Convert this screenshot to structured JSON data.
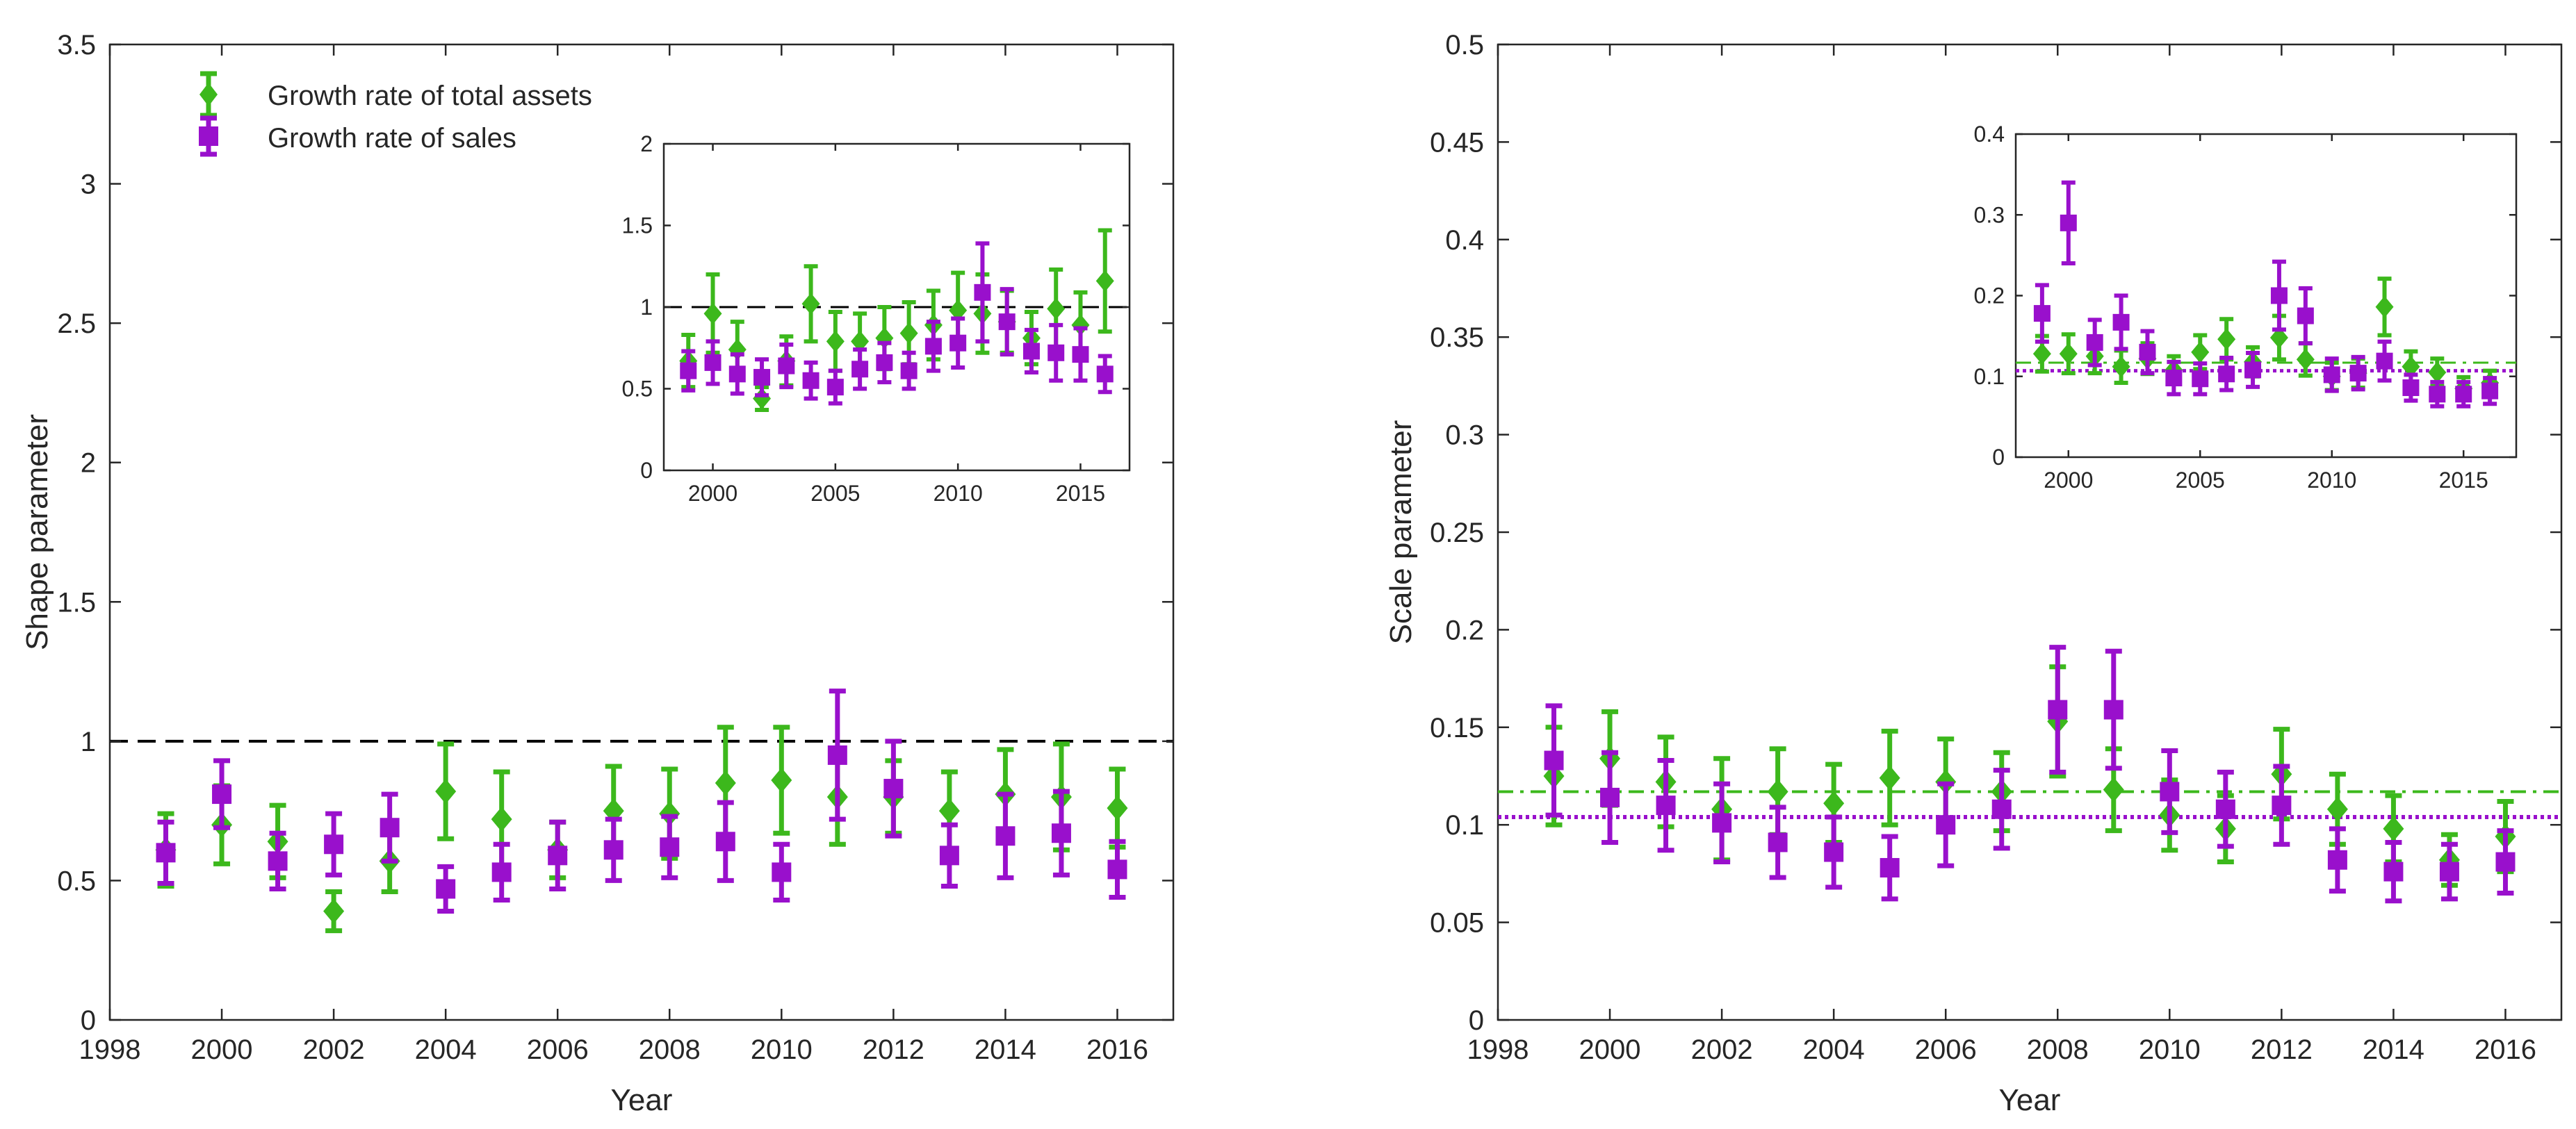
{
  "colors": {
    "assets": "#3cb81c",
    "sales": "#9910cc",
    "reference": "#000000",
    "axis": "#262626"
  },
  "legend": {
    "assets_label": "Growth rate of total assets",
    "sales_label": "Growth rate of sales"
  },
  "chart_data": [
    {
      "id": "shape-main",
      "type": "scatter",
      "title": "",
      "xlabel": "Year",
      "ylabel": "Shape parameter",
      "xlim": [
        1998,
        2017
      ],
      "ylim": [
        0,
        3.5
      ],
      "xticks": [
        1998,
        2000,
        2002,
        2004,
        2006,
        2008,
        2010,
        2012,
        2014,
        2016
      ],
      "xtick_labels": [
        "1998",
        "2000",
        "2002",
        "2004",
        "2006",
        "2008",
        "2010",
        "2012",
        "2014",
        "2016"
      ],
      "yticks": [
        0,
        0.5,
        1,
        1.5,
        2,
        2.5,
        3,
        3.5
      ],
      "ytick_labels": [
        "0",
        "0.5",
        "1",
        "1.5",
        "2",
        "2.5",
        "3",
        "3.5"
      ],
      "ref_line": {
        "y": 1,
        "style": "dashed",
        "color": "#000000"
      },
      "legend_position": "top-left",
      "x": [
        1999,
        2000,
        2001,
        2002,
        2003,
        2004,
        2005,
        2006,
        2007,
        2008,
        2009,
        2010,
        2011,
        2012,
        2013,
        2014,
        2015,
        2016
      ],
      "series": [
        {
          "name": "Growth rate of total assets",
          "marker": "diamond",
          "color": "#3cb81c",
          "values": [
            0.61,
            0.7,
            0.64,
            0.39,
            0.57,
            0.82,
            0.72,
            0.61,
            0.75,
            0.74,
            0.85,
            0.86,
            0.8,
            0.8,
            0.75,
            0.81,
            0.8,
            0.76
          ],
          "err": [
            0.13,
            0.14,
            0.13,
            0.07,
            0.11,
            0.17,
            0.17,
            0.1,
            0.16,
            0.16,
            0.2,
            0.19,
            0.17,
            0.13,
            0.14,
            0.16,
            0.19,
            0.14
          ]
        },
        {
          "name": "Growth rate of sales",
          "marker": "square",
          "color": "#9910cc",
          "values": [
            0.6,
            0.81,
            0.57,
            0.63,
            0.69,
            0.47,
            0.53,
            0.59,
            0.61,
            0.62,
            0.64,
            0.53,
            0.95,
            0.83,
            0.59,
            0.66,
            0.67,
            0.54
          ],
          "err": [
            0.11,
            0.12,
            0.1,
            0.11,
            0.12,
            0.08,
            0.1,
            0.12,
            0.11,
            0.11,
            0.14,
            0.1,
            0.23,
            0.17,
            0.11,
            0.15,
            0.15,
            0.1
          ]
        }
      ]
    },
    {
      "id": "shape-inset",
      "type": "scatter",
      "title": "",
      "xlabel": "",
      "ylabel": "",
      "xlim": [
        1998,
        2017
      ],
      "ylim": [
        0,
        2
      ],
      "xticks": [
        2000,
        2005,
        2010,
        2015
      ],
      "xtick_labels": [
        "2000",
        "2005",
        "2010",
        "2015"
      ],
      "yticks": [
        0,
        0.5,
        1,
        1.5,
        2
      ],
      "ytick_labels": [
        "0",
        "0.5",
        "1",
        "1.5",
        "2"
      ],
      "ref_line": {
        "y": 1,
        "style": "dashed",
        "color": "#000000"
      },
      "x": [
        1999,
        2000,
        2001,
        2002,
        2003,
        2004,
        2005,
        2006,
        2007,
        2008,
        2009,
        2010,
        2011,
        2012,
        2013,
        2014,
        2015,
        2016
      ],
      "series": [
        {
          "name": "Growth rate of total assets",
          "marker": "diamond",
          "color": "#3cb81c",
          "values": [
            0.67,
            0.96,
            0.74,
            0.44,
            0.67,
            1.02,
            0.79,
            0.79,
            0.81,
            0.84,
            0.89,
            0.98,
            0.96,
            0.91,
            0.81,
            0.99,
            0.89,
            1.16
          ],
          "err": [
            0.16,
            0.24,
            0.17,
            0.07,
            0.15,
            0.23,
            0.18,
            0.17,
            0.19,
            0.19,
            0.21,
            0.23,
            0.24,
            0.19,
            0.16,
            0.24,
            0.2,
            0.31
          ]
        },
        {
          "name": "Growth rate of sales",
          "marker": "square",
          "color": "#9910cc",
          "values": [
            0.61,
            0.66,
            0.59,
            0.57,
            0.64,
            0.55,
            0.51,
            0.62,
            0.66,
            0.61,
            0.76,
            0.78,
            1.09,
            0.91,
            0.73,
            0.72,
            0.71,
            0.59
          ],
          "err": [
            0.12,
            0.13,
            0.12,
            0.11,
            0.13,
            0.11,
            0.1,
            0.12,
            0.12,
            0.11,
            0.15,
            0.15,
            0.3,
            0.2,
            0.13,
            0.17,
            0.16,
            0.11
          ]
        }
      ]
    },
    {
      "id": "scale-main",
      "type": "scatter",
      "title": "",
      "xlabel": "Year",
      "ylabel": "Scale parameter",
      "xlim": [
        1998,
        2017
      ],
      "ylim": [
        0,
        0.5
      ],
      "xticks": [
        1998,
        2000,
        2002,
        2004,
        2006,
        2008,
        2010,
        2012,
        2014,
        2016
      ],
      "xtick_labels": [
        "1998",
        "2000",
        "2002",
        "2004",
        "2006",
        "2008",
        "2010",
        "2012",
        "2014",
        "2016"
      ],
      "yticks": [
        0,
        0.05,
        0.1,
        0.15,
        0.2,
        0.25,
        0.3,
        0.35,
        0.4,
        0.45,
        0.5
      ],
      "ytick_labels": [
        "0",
        "0.05",
        "0.1",
        "0.15",
        "0.2",
        "0.25",
        "0.3",
        "0.35",
        "0.4",
        "0.45",
        "0.5"
      ],
      "ref_lines": [
        {
          "y": 0.117,
          "style": "dash-dot",
          "color": "#3cb81c"
        },
        {
          "y": 0.104,
          "style": "dotted",
          "color": "#9910cc"
        }
      ],
      "x": [
        1999,
        2000,
        2001,
        2002,
        2003,
        2004,
        2005,
        2006,
        2007,
        2008,
        2009,
        2010,
        2011,
        2012,
        2013,
        2014,
        2015,
        2016
      ],
      "series": [
        {
          "name": "Growth rate of total assets",
          "marker": "diamond",
          "color": "#3cb81c",
          "values": [
            0.125,
            0.134,
            0.122,
            0.108,
            0.117,
            0.111,
            0.124,
            0.122,
            0.117,
            0.153,
            0.118,
            0.105,
            0.098,
            0.126,
            0.108,
            0.098,
            0.082,
            0.094
          ],
          "err": [
            0.025,
            0.024,
            0.023,
            0.026,
            0.022,
            0.02,
            0.024,
            0.022,
            0.02,
            0.028,
            0.021,
            0.018,
            0.017,
            0.023,
            0.018,
            0.017,
            0.013,
            0.018
          ]
        },
        {
          "name": "Growth rate of sales",
          "marker": "square",
          "color": "#9910cc",
          "values": [
            0.133,
            0.114,
            0.11,
            0.101,
            0.091,
            0.086,
            0.078,
            0.1,
            0.108,
            0.159,
            0.159,
            0.117,
            0.108,
            0.11,
            0.082,
            0.076,
            0.076,
            0.081
          ],
          "err": [
            0.028,
            0.023,
            0.023,
            0.02,
            0.018,
            0.018,
            0.016,
            0.021,
            0.02,
            0.032,
            0.03,
            0.021,
            0.019,
            0.02,
            0.016,
            0.015,
            0.014,
            0.016
          ]
        }
      ]
    },
    {
      "id": "scale-inset",
      "type": "scatter",
      "title": "",
      "xlabel": "",
      "ylabel": "",
      "xlim": [
        1998,
        2017
      ],
      "ylim": [
        0,
        0.4
      ],
      "xticks": [
        2000,
        2005,
        2010,
        2015
      ],
      "xtick_labels": [
        "2000",
        "2005",
        "2010",
        "2015"
      ],
      "yticks": [
        0,
        0.1,
        0.2,
        0.3,
        0.4
      ],
      "ytick_labels": [
        "0",
        "0.1",
        "0.2",
        "0.3",
        "0.4"
      ],
      "ref_lines": [
        {
          "y": 0.117,
          "style": "dash-dot",
          "color": "#3cb81c"
        },
        {
          "y": 0.107,
          "style": "dotted",
          "color": "#9910cc"
        }
      ],
      "x": [
        1999,
        2000,
        2001,
        2002,
        2003,
        2004,
        2005,
        2006,
        2007,
        2008,
        2009,
        2010,
        2011,
        2012,
        2013,
        2014,
        2015,
        2016
      ],
      "series": [
        {
          "name": "Growth rate of total assets",
          "marker": "diamond",
          "color": "#3cb81c",
          "values": [
            0.128,
            0.128,
            0.125,
            0.112,
            0.122,
            0.108,
            0.13,
            0.146,
            0.118,
            0.148,
            0.121,
            0.1,
            0.104,
            0.186,
            0.112,
            0.105,
            0.085,
            0.092
          ],
          "err": [
            0.022,
            0.024,
            0.021,
            0.02,
            0.019,
            0.017,
            0.021,
            0.025,
            0.018,
            0.027,
            0.02,
            0.017,
            0.018,
            0.035,
            0.019,
            0.017,
            0.014,
            0.015
          ]
        },
        {
          "name": "Growth rate of sales",
          "marker": "square",
          "color": "#9910cc",
          "values": [
            0.178,
            0.29,
            0.142,
            0.167,
            0.13,
            0.098,
            0.097,
            0.103,
            0.108,
            0.2,
            0.175,
            0.102,
            0.104,
            0.119,
            0.086,
            0.078,
            0.078,
            0.082
          ],
          "err": [
            0.035,
            0.05,
            0.028,
            0.033,
            0.026,
            0.02,
            0.019,
            0.02,
            0.021,
            0.042,
            0.034,
            0.02,
            0.02,
            0.024,
            0.016,
            0.015,
            0.015,
            0.016
          ]
        }
      ]
    }
  ]
}
